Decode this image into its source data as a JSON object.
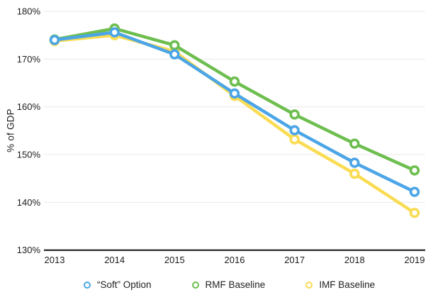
{
  "colors": {
    "background": "#ffffff",
    "grid": "#e8e8e8",
    "axis": "#111111",
    "text": "#1c1c1c"
  },
  "chart_data": {
    "type": "line",
    "title": "",
    "xlabel": "",
    "ylabel": "% of GDP",
    "categories": [
      "2013",
      "2014",
      "2015",
      "2016",
      "2017",
      "2018",
      "2019"
    ],
    "series": [
      {
        "name": "“Soft” Option",
        "color": "#4ba5e6",
        "values": [
          174.0,
          175.6,
          171.0,
          162.8,
          155.1,
          148.3,
          142.2
        ]
      },
      {
        "name": "RMF Baseline",
        "color": "#6dbe4f",
        "values": [
          174.1,
          176.4,
          172.9,
          165.3,
          158.4,
          152.3,
          146.7
        ]
      },
      {
        "name": "IMF Baseline",
        "color": "#fadc52",
        "values": [
          173.8,
          175.0,
          171.6,
          162.3,
          153.2,
          146.0,
          137.8
        ]
      }
    ],
    "ylim": [
      130,
      180
    ],
    "ytick_labels": [
      "180%",
      "170%",
      "160%",
      "150%",
      "140%",
      "130%"
    ],
    "ytick_values": [
      180,
      170,
      160,
      150,
      140,
      130
    ],
    "grid": true,
    "legend_position": "bottom",
    "marker": "open-circle"
  }
}
